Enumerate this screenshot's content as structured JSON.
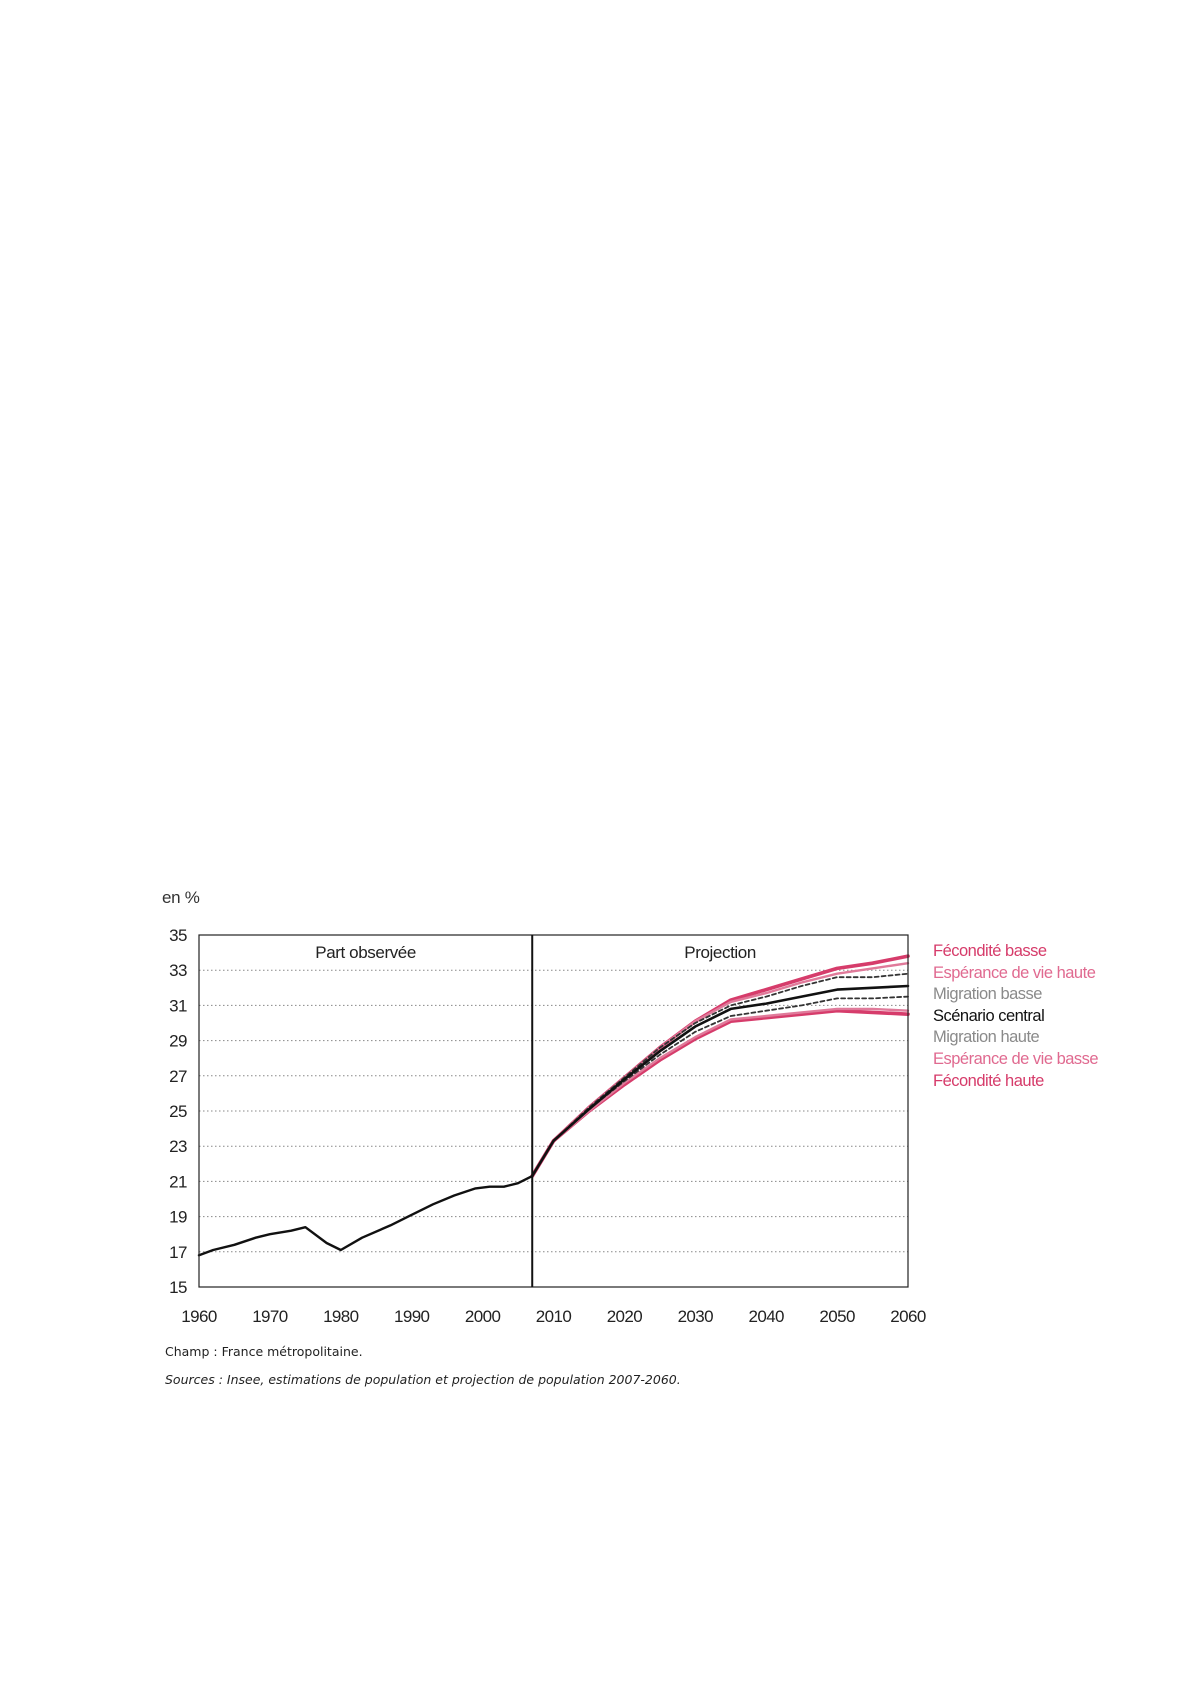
{
  "chart_data": {
    "type": "line",
    "unit_label": "en %",
    "regions": [
      "Part observée",
      "Projection"
    ],
    "divider_x": 2007,
    "xlim": [
      1960,
      2060
    ],
    "ylim": [
      15,
      35
    ],
    "x_ticks": [
      1960,
      1970,
      1980,
      1990,
      2000,
      2010,
      2020,
      2030,
      2040,
      2050,
      2060
    ],
    "y_ticks": [
      15,
      17,
      19,
      21,
      23,
      25,
      27,
      29,
      31,
      33,
      35
    ],
    "grid": "dotted horizontal",
    "legend_position": "right",
    "colors": {
      "observed": "#111111",
      "central": "#111111",
      "migration": "#333333",
      "life_expectancy": "#e07a9a",
      "fertility": "#d63c6b",
      "legend_grey": "#8a8a8a",
      "legend_pink": "#e06a90",
      "legend_red": "#d63b6a"
    },
    "observed": {
      "x": [
        1960,
        1962,
        1965,
        1968,
        1970,
        1973,
        1975,
        1978,
        1980,
        1983,
        1987,
        1990,
        1993,
        1996,
        1999,
        2001,
        2003,
        2005,
        2007
      ],
      "y": [
        16.8,
        17.1,
        17.4,
        17.8,
        18.0,
        18.2,
        18.4,
        17.5,
        17.1,
        17.8,
        18.5,
        19.1,
        19.7,
        20.2,
        20.6,
        20.7,
        20.7,
        20.9,
        21.3
      ]
    },
    "projection_x": [
      2007,
      2010,
      2015,
      2020,
      2025,
      2030,
      2035,
      2040,
      2045,
      2050,
      2055,
      2060
    ],
    "series": [
      {
        "name": "Fécondité basse",
        "style": "fertility",
        "values": [
          21.3,
          23.3,
          25.2,
          26.9,
          28.6,
          30.1,
          31.3,
          31.9,
          32.5,
          33.1,
          33.4,
          33.8
        ]
      },
      {
        "name": "Espérance de vie haute",
        "style": "life_expectancy",
        "values": [
          21.3,
          23.3,
          25.2,
          26.9,
          28.6,
          30.1,
          31.2,
          31.7,
          32.3,
          32.8,
          33.1,
          33.4
        ]
      },
      {
        "name": "Migration basse",
        "style": "migration",
        "values": [
          21.3,
          23.3,
          25.2,
          26.9,
          28.6,
          30.0,
          31.0,
          31.5,
          32.1,
          32.6,
          32.6,
          32.8
        ]
      },
      {
        "name": "Scénario central",
        "style": "central",
        "values": [
          21.3,
          23.3,
          25.1,
          26.8,
          28.4,
          29.8,
          30.8,
          31.1,
          31.5,
          31.9,
          32.0,
          32.1
        ]
      },
      {
        "name": "Migration haute",
        "style": "migration",
        "values": [
          21.3,
          23.3,
          25.1,
          26.7,
          28.2,
          29.5,
          30.4,
          30.7,
          31.0,
          31.4,
          31.4,
          31.5
        ]
      },
      {
        "name": "Espérance de vie basse",
        "style": "life_expectancy",
        "values": [
          21.3,
          23.3,
          25.0,
          26.6,
          28.0,
          29.2,
          30.2,
          30.4,
          30.6,
          30.8,
          30.8,
          30.7
        ]
      },
      {
        "name": "Fécondité haute",
        "style": "fertility",
        "values": [
          21.3,
          23.3,
          25.0,
          26.5,
          27.9,
          29.1,
          30.1,
          30.3,
          30.5,
          30.7,
          30.6,
          30.5
        ]
      }
    ],
    "legend": [
      {
        "label": "Fécondité basse",
        "color": "#d63b6a"
      },
      {
        "label": "Espérance de vie haute",
        "color": "#e06a90"
      },
      {
        "label": "Migration basse",
        "color": "#8a8a8a"
      },
      {
        "label": "Scénario central",
        "color": "#111111"
      },
      {
        "label": "Migration haute",
        "color": "#8a8a8a"
      },
      {
        "label": "Espérance de vie basse",
        "color": "#e06a90"
      },
      {
        "label": "Fécondité haute",
        "color": "#d63b6a"
      }
    ]
  },
  "notes": {
    "champ": "Champ : France métropolitaine.",
    "sources": "Sources : Insee, estimations de population et projection de population 2007-2060."
  }
}
